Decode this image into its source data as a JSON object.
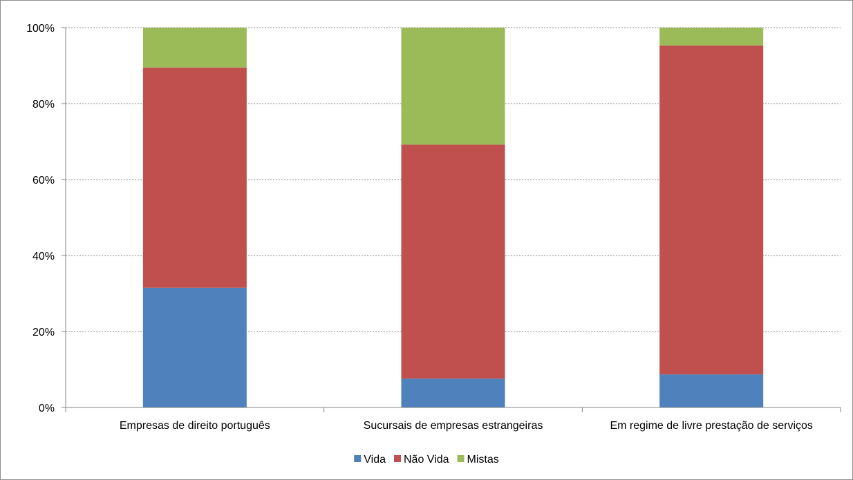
{
  "chart_data": {
    "type": "bar",
    "stacked": true,
    "percent_stacked": true,
    "categories": [
      "Empresas de direito português",
      "Sucursais de empresas estrangeiras",
      "Em regime de livre prestação de serviços"
    ],
    "series": [
      {
        "name": "Vida",
        "color": "#4f81bd",
        "values": [
          31.5,
          7.6,
          8.7
        ]
      },
      {
        "name": "Não Vida",
        "color": "#c0504d",
        "values": [
          58.0,
          61.6,
          86.6
        ]
      },
      {
        "name": "Mistas",
        "color": "#9bbb59",
        "values": [
          10.5,
          30.8,
          4.7
        ]
      }
    ],
    "yticks": [
      "0%",
      "20%",
      "40%",
      "60%",
      "80%",
      "100%"
    ],
    "ylim": [
      0,
      100
    ],
    "grid": true,
    "legend_position": "bottom"
  }
}
